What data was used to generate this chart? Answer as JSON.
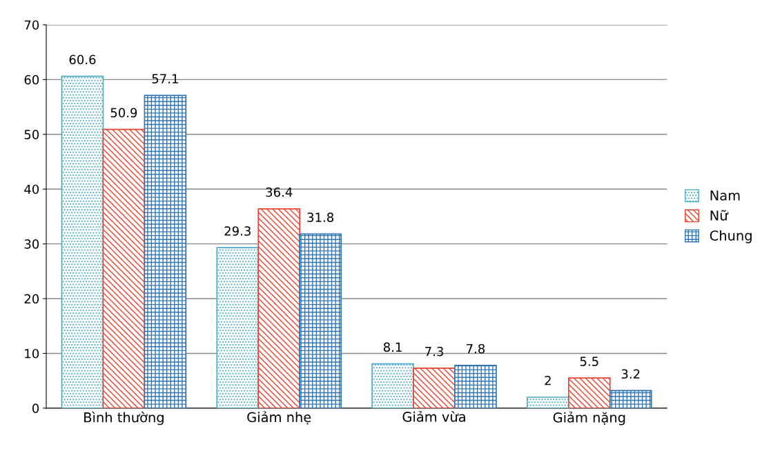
{
  "chart_data": {
    "type": "bar",
    "categories": [
      "Bình thường",
      "Giảm nhẹ",
      "Giảm vừa",
      "Giảm nặng"
    ],
    "series": [
      {
        "name": "Nam",
        "color": "#4bacc6",
        "values": [
          60.6,
          29.3,
          8.1,
          2
        ]
      },
      {
        "name": "Nữ",
        "color": "#e8432d",
        "values": [
          50.9,
          36.4,
          7.3,
          5.5
        ]
      },
      {
        "name": "Chung",
        "color": "#2e75b6",
        "values": [
          57.1,
          31.8,
          7.8,
          3.2
        ]
      }
    ],
    "ylim": [
      0,
      70
    ],
    "yticks": [
      0,
      10,
      20,
      30,
      40,
      50,
      60,
      70
    ],
    "grid": "y",
    "legend": "right",
    "data_labels": true
  }
}
